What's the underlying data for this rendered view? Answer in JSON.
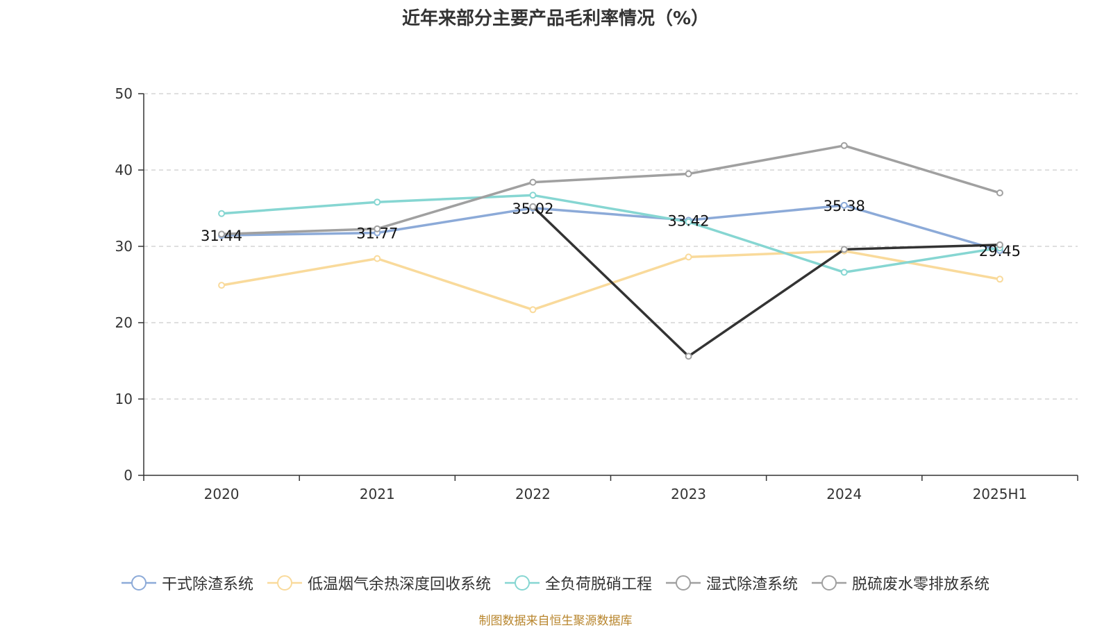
{
  "title": "近年来部分主要产品毛利率情况（%）",
  "source": "制图数据来自恒生聚源数据库",
  "chart_data": {
    "type": "line",
    "title": "近年来部分主要产品毛利率情况（%）",
    "categories": [
      "2020",
      "2021",
      "2022",
      "2023",
      "2024",
      "2025H1"
    ],
    "ylim": [
      0,
      50
    ],
    "yticks": [
      0,
      10,
      20,
      30,
      40,
      50
    ],
    "grid": true,
    "legend_position": "bottom",
    "series": [
      {
        "name": "干式除渣系统",
        "color": "#8caad8",
        "values": [
          31.44,
          31.77,
          35.02,
          33.42,
          35.38,
          29.45
        ],
        "show_labels": true
      },
      {
        "name": "低温烟气余热深度回收系统",
        "color": "#f9da9b",
        "values": [
          24.9,
          28.4,
          21.7,
          28.6,
          29.4,
          25.7
        ],
        "show_labels": false
      },
      {
        "name": "全负荷脱硝工程",
        "color": "#86d6d2",
        "values": [
          34.3,
          35.8,
          36.7,
          33.2,
          26.6,
          29.8
        ],
        "show_labels": false
      },
      {
        "name": "湿式除渣系统",
        "color": "#a0a0a0",
        "values": [
          31.6,
          32.3,
          38.4,
          39.5,
          43.2,
          37.0
        ],
        "show_labels": false
      },
      {
        "name": "脱硫废水零排放系统",
        "color": "#333333",
        "legend_color": "#a0a0a0",
        "values": [
          null,
          null,
          35.2,
          15.6,
          29.6,
          30.2
        ],
        "show_labels": false
      }
    ]
  }
}
